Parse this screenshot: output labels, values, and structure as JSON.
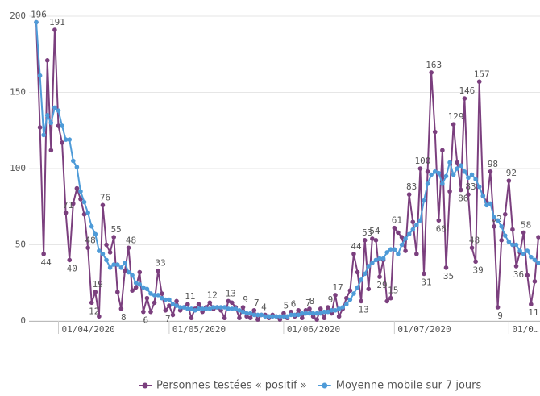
{
  "chart_data": {
    "type": "line",
    "x": [
      "2020-03-26",
      "2020-03-27",
      "2020-03-28",
      "2020-03-29",
      "2020-03-30",
      "2020-03-31",
      "2020-04-01",
      "2020-04-02",
      "2020-04-03",
      "2020-04-04",
      "2020-04-05",
      "2020-04-06",
      "2020-04-07",
      "2020-04-08",
      "2020-04-09",
      "2020-04-10",
      "2020-04-11",
      "2020-04-12",
      "2020-04-13",
      "2020-04-14",
      "2020-04-15",
      "2020-04-16",
      "2020-04-17",
      "2020-04-18",
      "2020-04-19",
      "2020-04-20",
      "2020-04-21",
      "2020-04-22",
      "2020-04-23",
      "2020-04-24",
      "2020-04-25",
      "2020-04-26",
      "2020-04-27",
      "2020-04-28",
      "2020-04-29",
      "2020-04-30",
      "2020-05-01",
      "2020-05-02",
      "2020-05-03",
      "2020-05-04",
      "2020-05-05",
      "2020-05-06",
      "2020-05-07",
      "2020-05-08",
      "2020-05-09",
      "2020-05-10",
      "2020-05-11",
      "2020-05-12",
      "2020-05-13",
      "2020-05-14",
      "2020-05-15",
      "2020-05-16",
      "2020-05-17",
      "2020-05-18",
      "2020-05-19",
      "2020-05-20",
      "2020-05-21",
      "2020-05-22",
      "2020-05-23",
      "2020-05-24",
      "2020-05-25",
      "2020-05-26",
      "2020-05-27",
      "2020-05-28",
      "2020-05-29",
      "2020-05-30",
      "2020-05-31",
      "2020-06-01",
      "2020-06-02",
      "2020-06-03",
      "2020-06-04",
      "2020-06-05",
      "2020-06-06",
      "2020-06-07",
      "2020-06-08",
      "2020-06-09",
      "2020-06-10",
      "2020-06-11",
      "2020-06-12",
      "2020-06-13",
      "2020-06-14",
      "2020-06-15",
      "2020-06-16",
      "2020-06-17",
      "2020-06-18",
      "2020-06-19",
      "2020-06-20",
      "2020-06-21",
      "2020-06-22",
      "2020-06-23",
      "2020-06-24",
      "2020-06-25",
      "2020-06-26",
      "2020-06-27",
      "2020-06-28",
      "2020-06-29",
      "2020-06-30",
      "2020-07-01",
      "2020-07-02",
      "2020-07-03",
      "2020-07-04",
      "2020-07-05",
      "2020-07-06",
      "2020-07-07",
      "2020-07-08",
      "2020-07-09",
      "2020-07-10",
      "2020-07-11",
      "2020-07-12",
      "2020-07-13",
      "2020-07-14",
      "2020-07-15",
      "2020-07-16",
      "2020-07-17",
      "2020-07-18",
      "2020-07-19",
      "2020-07-20",
      "2020-07-21",
      "2020-07-22",
      "2020-07-23",
      "2020-07-24",
      "2020-07-25",
      "2020-07-26",
      "2020-07-27",
      "2020-07-28",
      "2020-07-29",
      "2020-07-30",
      "2020-07-31",
      "2020-08-01",
      "2020-08-02",
      "2020-08-03",
      "2020-08-04",
      "2020-08-05",
      "2020-08-06",
      "2020-08-07",
      "2020-08-08",
      "2020-08-09"
    ],
    "series": [
      {
        "name": "Personnes testées « positif »",
        "color": "#7b3f7e",
        "values": [
          196,
          127,
          44,
          171,
          112,
          191,
          128,
          117,
          71,
          40,
          77,
          87,
          80,
          70,
          48,
          12,
          19,
          3,
          76,
          50,
          45,
          55,
          19,
          8,
          33,
          48,
          20,
          22,
          32,
          6,
          15,
          6,
          12,
          33,
          18,
          7,
          10,
          4,
          13,
          7,
          9,
          11,
          2,
          8,
          11,
          6,
          9,
          12,
          8,
          9,
          7,
          2,
          13,
          12,
          9,
          2,
          9,
          3,
          2,
          7,
          1,
          4,
          4,
          2,
          4,
          3,
          1,
          5,
          2,
          6,
          3,
          7,
          2,
          7,
          8,
          3,
          1,
          8,
          2,
          9,
          5,
          17,
          3,
          8,
          15,
          20,
          44,
          32,
          13,
          53,
          21,
          54,
          53,
          29,
          40,
          13,
          15,
          61,
          58,
          55,
          46,
          83,
          65,
          44,
          100,
          31,
          98,
          163,
          124,
          66,
          112,
          35,
          85,
          129,
          104,
          86,
          146,
          83,
          48,
          39,
          157,
          82,
          78,
          98,
          62,
          9,
          53,
          70,
          92,
          60,
          36,
          45,
          58,
          30,
          11,
          26,
          55
        ],
        "value_labels": [
          "196",
          null,
          "44",
          null,
          null,
          "191",
          null,
          null,
          "71",
          "40",
          null,
          null,
          null,
          null,
          "48",
          "12",
          "19",
          null,
          "76",
          null,
          null,
          "55",
          null,
          "8",
          null,
          "48",
          null,
          null,
          null,
          "6",
          null,
          null,
          null,
          "33",
          null,
          "7",
          null,
          null,
          null,
          null,
          null,
          "11",
          null,
          null,
          null,
          null,
          null,
          "12",
          null,
          null,
          null,
          null,
          "13",
          null,
          null,
          null,
          "9",
          null,
          null,
          "7",
          null,
          "4",
          null,
          null,
          null,
          null,
          null,
          "5",
          null,
          "6",
          null,
          null,
          null,
          "7",
          "8",
          null,
          null,
          null,
          null,
          "9",
          null,
          "17",
          null,
          null,
          null,
          null,
          "44",
          null,
          "13",
          "53",
          null,
          "54",
          null,
          "29",
          null,
          null,
          "15",
          "61",
          null,
          null,
          null,
          "83",
          null,
          null,
          "100",
          "31",
          null,
          "163",
          null,
          "66",
          null,
          "35",
          null,
          "129",
          null,
          "86",
          "146",
          "83",
          "48",
          "39",
          "157",
          null,
          null,
          "98",
          "62",
          "9",
          null,
          null,
          "92",
          null,
          "36",
          null,
          "58",
          null,
          "11",
          null,
          null
        ]
      },
      {
        "name": "Moyenne mobile sur 7 jours",
        "color": "#4e9bd8",
        "values": [
          196,
          161,
          122,
          135,
          130,
          140,
          138,
          128,
          119,
          119,
          105,
          101,
          85,
          78,
          71,
          62,
          57,
          46,
          44,
          40,
          35,
          37,
          37,
          35,
          38,
          32,
          30,
          25,
          24,
          22,
          21,
          18,
          17,
          17,
          15,
          14,
          14,
          11,
          10,
          9,
          9,
          8,
          8,
          7,
          8,
          8,
          8,
          8,
          9,
          9,
          9,
          9,
          8,
          8,
          8,
          7,
          6,
          5,
          5,
          4,
          4,
          4,
          3,
          3,
          3,
          3,
          3,
          3,
          3,
          4,
          4,
          4,
          5,
          5,
          5,
          5,
          5,
          5,
          6,
          6,
          7,
          7,
          8,
          9,
          11,
          14,
          18,
          22,
          27,
          31,
          36,
          38,
          40,
          41,
          41,
          45,
          47,
          47,
          44,
          50,
          54,
          57,
          60,
          63,
          66,
          79,
          90,
          96,
          98,
          97,
          90,
          95,
          104,
          96,
          100,
          102,
          98,
          94,
          96,
          93,
          88,
          82,
          76,
          77,
          68,
          66,
          62,
          56,
          52,
          50,
          50,
          46,
          44,
          46,
          42,
          40,
          38
        ]
      }
    ],
    "xlim": [
      "2020-03-26",
      "2020-08-09"
    ],
    "xticks": [
      {
        "value": "2020-04-01",
        "label": "01/04/2020"
      },
      {
        "value": "2020-05-01",
        "label": "01/05/2020"
      },
      {
        "value": "2020-06-01",
        "label": "01/06/2020"
      },
      {
        "value": "2020-07-01",
        "label": "01/07/2020"
      },
      {
        "value": "2020-08-01",
        "label": "01/0…"
      }
    ],
    "ylim": [
      0,
      200
    ],
    "yticks": [
      0,
      50,
      100,
      150,
      200
    ],
    "grid": true,
    "legend": "bottom"
  }
}
